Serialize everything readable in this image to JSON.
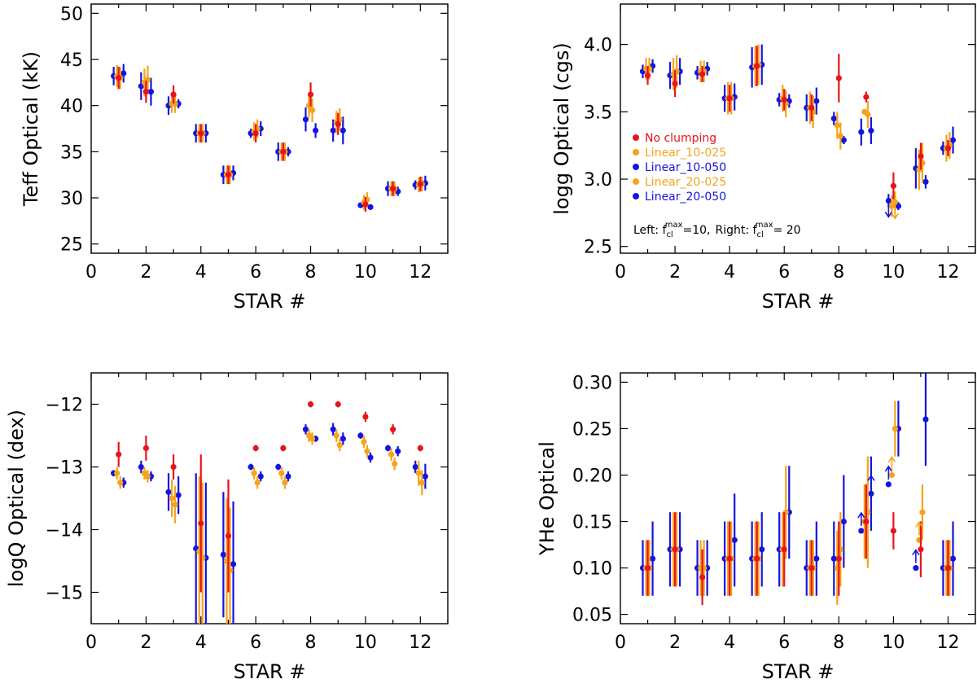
{
  "colors": {
    "No clumping": "#e8141c",
    "Linear_10-025": "#f5a31a",
    "Linear_10-050": "#1414e0",
    "Linear_20-025": "#f5a31a",
    "Linear_20-050": "#1414e0"
  },
  "offsets": {
    "No clumping": 0,
    "Linear_10-025": -0.06,
    "Linear_10-050": -0.18,
    "Linear_20-025": 0.06,
    "Linear_20-050": 0.18
  },
  "xlabel": "STAR #",
  "xticks": [
    0,
    2,
    4,
    6,
    8,
    10,
    12
  ],
  "legend": {
    "entries": [
      "No clumping",
      "Linear_10-025",
      "Linear_10-050",
      "Linear_20-025",
      "Linear_20-050"
    ],
    "note_left_prefix": "Left: f",
    "note_left_sub": "cl",
    "note_left_sup": "max",
    "note_left_val": "=10,",
    "note_right_prefix": "Right: f",
    "note_right_sub": "cl",
    "note_right_sup": "max",
    "note_right_val": "= 20"
  },
  "chart_data": [
    {
      "type": "scatter",
      "ylabel": "Teff Optical (kK)",
      "xlabel": "STAR #",
      "xlim": [
        0,
        13
      ],
      "ylim": [
        24,
        51
      ],
      "yticks": [
        25,
        30,
        35,
        40,
        45,
        50
      ],
      "ytick_labels": [
        "25",
        "30",
        "35",
        "40",
        "45",
        "50"
      ],
      "series": [
        {
          "name": "No clumping",
          "values": [
            43,
            41.5,
            41.2,
            37,
            32.5,
            37,
            35,
            41.2,
            38,
            29.3,
            31,
            31.5
          ],
          "errors": [
            1.2,
            1.2,
            1.0,
            1.0,
            1.0,
            1.0,
            1.0,
            1.3,
            1.2,
            0.8,
            0.8,
            0.8
          ]
        },
        {
          "name": "Linear_10-025",
          "values": [
            43.2,
            42.5,
            40.2,
            37,
            32.5,
            37.2,
            35,
            40,
            38.2,
            29.5,
            31,
            31.4
          ],
          "errors": [
            1.2,
            1.5,
            1.0,
            1.0,
            1.0,
            1.0,
            1.0,
            1.3,
            1.2,
            0.8,
            0.8,
            0.8
          ]
        },
        {
          "name": "Linear_10-050",
          "values": [
            43.2,
            42.1,
            40,
            37,
            32.5,
            37,
            35,
            38.5,
            37.3,
            29.2,
            31,
            31.4
          ],
          "errors": [
            1.0,
            1.5,
            1.0,
            1.0,
            1.0,
            0.5,
            1.0,
            1.3,
            1.2,
            0.3,
            0.8,
            0.5
          ]
        },
        {
          "name": "Linear_20-025",
          "values": [
            43,
            42.8,
            40.2,
            37,
            32.5,
            37.5,
            35,
            39.5,
            38.5,
            29.8,
            31,
            31.5
          ],
          "errors": [
            1.2,
            1.5,
            1.0,
            1.0,
            1.0,
            1.0,
            1.0,
            1.3,
            1.2,
            0.8,
            0.8,
            0.8
          ]
        },
        {
          "name": "Linear_20-050",
          "values": [
            43.5,
            41.5,
            40.2,
            37,
            32.7,
            37.5,
            35,
            37.3,
            37.3,
            29,
            30.7,
            31.6
          ],
          "errors": [
            1.0,
            1.5,
            0.5,
            1.0,
            0.8,
            0.8,
            0.5,
            0.8,
            1.5,
            0.3,
            0.5,
            0.8
          ]
        }
      ]
    },
    {
      "type": "scatter",
      "ylabel": "logg Optical (cgs)",
      "xlabel": "STAR #",
      "xlim": [
        0,
        13
      ],
      "ylim": [
        2.45,
        4.3
      ],
      "yticks": [
        2.5,
        3.0,
        3.5,
        4.0
      ],
      "ytick_labels": [
        "2.5",
        "3.0",
        "3.5",
        "4.0"
      ],
      "series": [
        {
          "name": "No clumping",
          "values": [
            3.77,
            3.71,
            3.78,
            3.6,
            3.84,
            3.59,
            3.53,
            3.75,
            3.61,
            2.95,
            3.17,
            3.23
          ],
          "errors": [
            0.07,
            0.1,
            0.06,
            0.1,
            0.15,
            0.08,
            0.1,
            0.18,
            0.04,
            0.1,
            0.1,
            0.06
          ]
        },
        {
          "name": "Linear_10-025",
          "values": [
            3.82,
            3.78,
            3.8,
            3.6,
            3.84,
            3.6,
            3.53,
            3.4,
            3.5,
            2.8,
            3.07,
            3.23
          ],
          "errors": [
            0.08,
            0.12,
            0.08,
            0.12,
            0.15,
            0.1,
            0.12,
            0.1,
            0.02,
            0.08,
            0.15,
            0.1
          ]
        },
        {
          "name": "Linear_10-050",
          "values": [
            3.8,
            3.77,
            3.79,
            3.6,
            3.83,
            3.59,
            3.53,
            3.45,
            3.35,
            2.84,
            3.08,
            3.23
          ],
          "errors": [
            0.05,
            0.1,
            0.05,
            0.1,
            0.15,
            0.05,
            0.1,
            0.05,
            0.1,
            0.05,
            0.15,
            0.05
          ]
        },
        {
          "name": "Linear_20-025",
          "values": [
            3.82,
            3.8,
            3.8,
            3.6,
            3.85,
            3.56,
            3.5,
            3.32,
            3.48,
            2.83,
            3.12,
            3.25
          ],
          "errors": [
            0.08,
            0.12,
            0.08,
            0.12,
            0.15,
            0.1,
            0.12,
            0.1,
            0.1,
            0.08,
            0.15,
            0.1
          ]
        },
        {
          "name": "Linear_20-050",
          "values": [
            3.84,
            3.8,
            3.82,
            3.61,
            3.85,
            3.58,
            3.58,
            3.29,
            3.36,
            2.8,
            2.98,
            3.29
          ],
          "errors": [
            0.05,
            0.1,
            0.05,
            0.1,
            0.15,
            0.05,
            0.1,
            0.03,
            0.1,
            0.03,
            0.05,
            0.1
          ]
        }
      ]
    },
    {
      "type": "scatter",
      "ylabel": "logQ Optical (dex)",
      "xlabel": "STAR #",
      "xlim": [
        0,
        13
      ],
      "ylim": [
        -15.5,
        -11.5
      ],
      "yticks": [
        -15,
        -14,
        -13,
        -12
      ],
      "ytick_labels": [
        "−15",
        "−14",
        "−13",
        "−12"
      ],
      "series": [
        {
          "name": "No clumping",
          "values": [
            -12.8,
            -12.7,
            -13.0,
            -13.9,
            -14.1,
            -12.7,
            -12.7,
            -12.0,
            -12.0,
            -12.2,
            -12.4,
            -12.7
          ],
          "errors": [
            0.2,
            0.2,
            0.2,
            1.1,
            0.9,
            0.05,
            0.05,
            0.05,
            0.05,
            0.08,
            0.08,
            0.05
          ]
        },
        {
          "name": "Linear_10-025",
          "values": [
            -13.1,
            -13.1,
            -13.5,
            -14.35,
            -14.5,
            -13.1,
            -13.1,
            -12.5,
            -12.5,
            -12.6,
            -12.8,
            -13.1
          ],
          "errors": [
            0.1,
            0.1,
            0.3,
            1.2,
            1.0,
            0.1,
            0.1,
            0.1,
            0.1,
            0.1,
            0.1,
            0.2
          ]
        },
        {
          "name": "Linear_10-050",
          "values": [
            -13.1,
            -13.0,
            -13.4,
            -14.3,
            -14.4,
            -13.0,
            -13.0,
            -12.4,
            -12.4,
            -12.5,
            -12.7,
            -13.0
          ],
          "errors": [
            0.05,
            0.1,
            0.3,
            1.2,
            1.0,
            0.05,
            0.05,
            0.08,
            0.1,
            0.05,
            0.05,
            0.1
          ]
        },
        {
          "name": "Linear_20-025",
          "values": [
            -13.25,
            -13.15,
            -13.6,
            -14.45,
            -14.65,
            -13.25,
            -13.25,
            -12.55,
            -12.65,
            -12.75,
            -12.95,
            -13.25
          ],
          "errors": [
            0.1,
            0.1,
            0.3,
            1.2,
            1.0,
            0.1,
            0.1,
            0.1,
            0.1,
            0.1,
            0.1,
            0.2
          ]
        },
        {
          "name": "Linear_20-050",
          "values": [
            -13.25,
            -13.15,
            -13.45,
            -14.45,
            -14.55,
            -13.15,
            -13.15,
            -12.55,
            -12.55,
            -12.85,
            -12.75,
            -13.15
          ],
          "errors": [
            0.08,
            0.08,
            0.3,
            1.2,
            1.0,
            0.08,
            0.08,
            0.05,
            0.1,
            0.08,
            0.08,
            0.2
          ]
        }
      ]
    },
    {
      "type": "scatter",
      "ylabel": "YHe Optical",
      "xlabel": "STAR #",
      "xlim": [
        0,
        13
      ],
      "ylim": [
        0.04,
        0.31
      ],
      "yticks": [
        0.05,
        0.1,
        0.15,
        0.2,
        0.25,
        0.3
      ],
      "ytick_labels": [
        "0.05",
        "0.10",
        "0.15",
        "0.20",
        "0.25",
        "0.30"
      ],
      "series": [
        {
          "name": "No clumping",
          "values": [
            0.1,
            0.12,
            0.09,
            0.11,
            0.11,
            0.12,
            0.1,
            0.11,
            0.15,
            0.14,
            0.12,
            0.1
          ],
          "errors": [
            0.03,
            0.04,
            0.03,
            0.04,
            0.04,
            0.04,
            0.03,
            0.04,
            0.04,
            0.02,
            0.03,
            0.03
          ]
        },
        {
          "name": "Linear_10-025",
          "values": [
            0.1,
            0.12,
            0.1,
            0.11,
            0.11,
            0.12,
            0.1,
            0.1,
            0.15,
            0.2,
            0.13,
            0.1
          ],
          "errors": [
            0.03,
            0.04,
            0.03,
            0.04,
            0.04,
            0.04,
            0.03,
            0.04,
            0.04,
            0.0,
            0.0,
            0.03
          ]
        },
        {
          "name": "Linear_10-050",
          "values": [
            0.1,
            0.12,
            0.1,
            0.11,
            0.11,
            0.12,
            0.1,
            0.11,
            0.14,
            0.19,
            0.1,
            0.1
          ],
          "errors": [
            0.03,
            0.04,
            0.03,
            0.04,
            0.04,
            0.04,
            0.03,
            0.04,
            0.0,
            0.0,
            0.0,
            0.03
          ]
        },
        {
          "name": "Linear_20-025",
          "values": [
            0.1,
            0.12,
            0.1,
            0.11,
            0.11,
            0.16,
            0.1,
            0.12,
            0.16,
            0.25,
            0.16,
            0.1
          ],
          "errors": [
            0.03,
            0.04,
            0.03,
            0.04,
            0.04,
            0.05,
            0.03,
            0.04,
            0.06,
            0.03,
            0.03,
            0.03
          ]
        },
        {
          "name": "Linear_20-050",
          "values": [
            0.11,
            0.12,
            0.1,
            0.13,
            0.12,
            0.16,
            0.11,
            0.15,
            0.18,
            0.25,
            0.26,
            0.11
          ],
          "errors": [
            0.04,
            0.04,
            0.03,
            0.05,
            0.04,
            0.05,
            0.04,
            0.05,
            0.04,
            0.03,
            0.05,
            0.04
          ]
        }
      ],
      "lower_limits": [
        {
          "star": 9,
          "series": "Linear_10-050",
          "value": 0.14
        },
        {
          "star": 9,
          "series": "Linear_20-050",
          "value": 0.18
        },
        {
          "star": 10,
          "series": "Linear_10-050",
          "value": 0.19
        },
        {
          "star": 10,
          "series": "Linear_10-025",
          "value": 0.2
        },
        {
          "star": 11,
          "series": "Linear_10-050",
          "value": 0.1
        },
        {
          "star": 11,
          "series": "Linear_10-025",
          "value": 0.13
        }
      ]
    }
  ]
}
